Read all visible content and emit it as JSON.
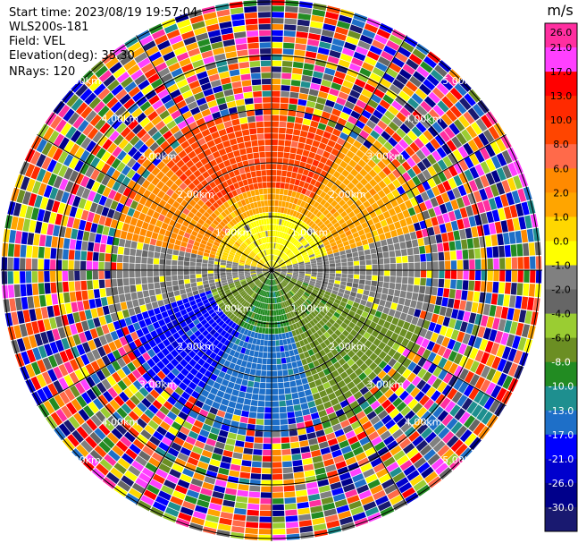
{
  "header": {
    "start_time": "Start time: 2023/08/19 19:57:04",
    "instrument": "WLS200s-181",
    "field": "Field: VEL",
    "elevation": "Elevation(deg): 35.30",
    "nrays": "NRays: 120"
  },
  "chart_data": {
    "type": "heatmap",
    "projection": "polar-ppi",
    "field": "VEL",
    "units": "m/s",
    "nrays": 120,
    "range_rings_km": [
      "1.00km",
      "2.00km",
      "3.00km",
      "4.00km",
      "5.00km"
    ],
    "spokes": 6,
    "colorbar": {
      "title": "m/s",
      "boundaries": [
        26.0,
        21.0,
        17.0,
        13.0,
        10.0,
        8.0,
        6.0,
        2.0,
        1.0,
        0.0,
        -1.0,
        -2.0,
        -4.0,
        -6.0,
        -8.0,
        -10.0,
        -13.0,
        -17.0,
        -21.0,
        -26.0,
        -30.0
      ],
      "tick_labels": [
        "26.0",
        "21.0",
        "17.0",
        "13.0",
        "10.0",
        "8.0",
        "6.0",
        "2.0",
        "1.0",
        "0.0",
        "-1.0",
        "-2.0",
        "-4.0",
        "-6.0",
        "-8.0",
        "-10.0",
        "-13.0",
        "-17.0",
        "-21.0",
        "-26.0",
        "-30.0"
      ],
      "colors": [
        "#ff2fa0",
        "#ff40ff",
        "#ff0000",
        "#ff2a00",
        "#ff4500",
        "#ff6a4a",
        "#ff8a00",
        "#ffa500",
        "#ffd700",
        "#ffff00",
        "#808080",
        "#666666",
        "#9acd32",
        "#6b8e23",
        "#228b22",
        "#1e8f8f",
        "#1e6fc8",
        "#0000ff",
        "#0000cd",
        "#00008b",
        "#191970"
      ]
    },
    "velocity_pattern": {
      "inner_positive_sector": "north to east",
      "inner_negative_sector": "south to west",
      "outer_region": "noisy"
    }
  }
}
